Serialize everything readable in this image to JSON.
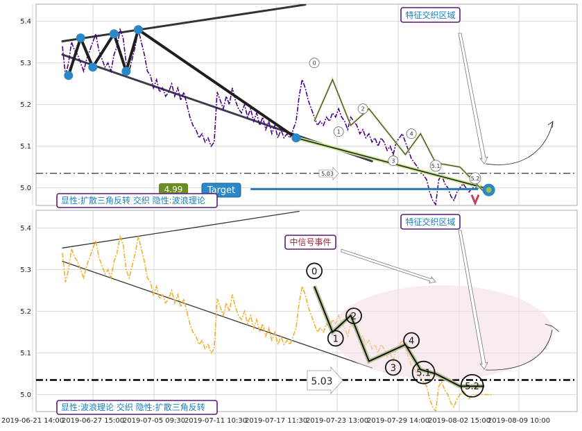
{
  "chart_data": [
    {
      "type": "line",
      "panel": "top",
      "ylim": [
        4.96,
        5.44
      ],
      "yticks": [
        5.0,
        5.1,
        5.2,
        5.3,
        5.4
      ],
      "grid": true,
      "series": [
        {
          "style": "dash-dot",
          "color": "#4b0082",
          "x": [
            0,
            1,
            2,
            3,
            4,
            5,
            6,
            7,
            8,
            9,
            10,
            11,
            12,
            13,
            14,
            15,
            16,
            17,
            18,
            19,
            20,
            21,
            22,
            23,
            24,
            25,
            26,
            27,
            28,
            29,
            30,
            31,
            32,
            33,
            34,
            35,
            36,
            37,
            38,
            39,
            40,
            41,
            42,
            43,
            44,
            45,
            46,
            47,
            48,
            49,
            50,
            51,
            52,
            53,
            54,
            55,
            56,
            57,
            58,
            59,
            60,
            61,
            62,
            63,
            64,
            65,
            66,
            67,
            68,
            69,
            70,
            71,
            72,
            73,
            74,
            75,
            76,
            77,
            78,
            79,
            80,
            81,
            82,
            83,
            84,
            85,
            86,
            87,
            88,
            89,
            90,
            91,
            92,
            93,
            94,
            95,
            96,
            97,
            98,
            99,
            100,
            101,
            102,
            103,
            104,
            105,
            106,
            107,
            108,
            109,
            110,
            111,
            112,
            113,
            114,
            115,
            116,
            117,
            118,
            119,
            120,
            121,
            122,
            123,
            124,
            125,
            126,
            127,
            128,
            129,
            130,
            131,
            132,
            133,
            134,
            135,
            136,
            137,
            138,
            139,
            140,
            141,
            142
          ],
          "values": [
            5.34,
            5.27,
            5.3,
            5.35,
            5.33,
            5.32,
            5.3,
            5.28,
            5.31,
            5.33,
            5.35,
            5.37,
            5.33,
            5.31,
            5.29,
            5.3,
            5.28,
            5.32,
            5.34,
            5.38,
            5.36,
            5.3,
            5.28,
            5.31,
            5.34,
            5.38,
            5.35,
            5.32,
            5.28,
            5.27,
            5.24,
            5.26,
            5.23,
            5.24,
            5.22,
            5.23,
            5.25,
            5.22,
            5.24,
            5.21,
            5.23,
            5.2,
            5.17,
            5.15,
            5.14,
            5.12,
            5.13,
            5.11,
            5.12,
            5.1,
            5.11,
            5.23,
            5.21,
            5.19,
            5.22,
            5.2,
            5.24,
            5.21,
            5.19,
            5.18,
            5.2,
            5.17,
            5.19,
            5.16,
            5.18,
            5.15,
            5.17,
            5.14,
            5.16,
            5.13,
            5.15,
            5.12,
            5.14,
            5.12,
            5.13,
            5.12,
            5.14,
            5.16,
            5.22,
            5.26,
            5.24,
            5.21,
            5.19,
            5.17,
            5.15,
            5.16,
            5.15,
            5.17,
            5.16,
            5.18,
            5.17,
            5.19,
            5.17,
            5.16,
            5.14,
            5.17,
            5.16,
            5.15,
            5.13,
            5.14,
            5.12,
            5.13,
            5.11,
            5.12,
            5.1,
            5.12,
            5.11,
            5.09,
            5.1,
            5.08,
            5.11,
            5.12,
            5.13,
            5.11,
            5.09,
            5.07,
            5.06,
            5.05,
            5.04,
            5.03,
            5.02,
            4.99,
            4.97,
            4.96,
            5.02,
            5.03,
            5.01,
            5.0,
            4.98,
            4.97,
            4.99,
            5.0,
            5.01,
            5.0,
            4.99,
            5.0,
            5.0,
            5.0,
            5.0,
            5.0,
            5.0,
            5.0,
            5.0
          ]
        }
      ],
      "lines": [
        {
          "x": [
            0,
            80
          ],
          "y": [
            5.352,
            5.44
          ],
          "color": "#333",
          "width": 3
        },
        {
          "x": [
            0,
            102
          ],
          "y": [
            5.32,
            5.064
          ],
          "color": "#3c3c50",
          "width": 3
        }
      ],
      "pattern_line": {
        "x": [
          2,
          6,
          10,
          17,
          21,
          25,
          77
        ],
        "y": [
          5.27,
          5.36,
          5.29,
          5.37,
          5.28,
          5.38,
          5.12
        ]
      },
      "pattern_points": {
        "x": [
          2,
          6,
          10,
          17,
          21,
          25,
          77
        ],
        "y": [
          5.27,
          5.36,
          5.29,
          5.37,
          5.28,
          5.38,
          5.12
        ]
      },
      "green_line": {
        "x": [
          77,
          139
        ],
        "y": [
          5.12,
          5.0
        ]
      },
      "wave_path": {
        "x": [
          83,
          89,
          95,
          101,
          113,
          118,
          123,
          131,
          139
        ],
        "y": [
          5.16,
          5.26,
          5.15,
          5.19,
          5.08,
          5.13,
          5.06,
          5.05,
          4.99
        ]
      },
      "wave_labels": [
        {
          "label": "0",
          "x": 83,
          "y": 5.3
        },
        {
          "label": "1",
          "x": 91,
          "y": 5.135
        },
        {
          "label": "2",
          "x": 99,
          "y": 5.19
        },
        {
          "label": "3",
          "x": 109,
          "y": 5.065
        },
        {
          "label": "4",
          "x": 115,
          "y": 5.13
        },
        {
          "label": "5.1",
          "x": 123,
          "y": 5.053
        },
        {
          "label": "5.2",
          "x": 136,
          "y": 5.023
        }
      ],
      "hline": 5.035,
      "hline_label": "5.03",
      "target": {
        "label": "Target",
        "value": "4.99",
        "x_start": 62,
        "x_end": 137,
        "y": 4.997
      },
      "annotation_box": "特征交织区域",
      "legend": "显性:扩散三角反转 交织 隐性:波浪理论"
    },
    {
      "type": "line",
      "panel": "bottom",
      "ylim": [
        4.96,
        5.44
      ],
      "yticks": [
        5.0,
        5.1,
        5.2,
        5.3,
        5.4
      ],
      "grid": true,
      "xticks": [
        "2019-06-21 14:00",
        "2019-06-27 15:00",
        "2019-07-05 09:30",
        "2019-07-11 10:30",
        "2019-07-17 11:30",
        "2019-07-23 13:00",
        "2019-07-29 14:00",
        "2019-08-02 15:00",
        "2019-08-09 10:00"
      ],
      "series": [
        {
          "style": "dash-dot",
          "color": "#f0b030",
          "x": [
            0,
            1,
            2,
            3,
            4,
            5,
            6,
            7,
            8,
            9,
            10,
            11,
            12,
            13,
            14,
            15,
            16,
            17,
            18,
            19,
            20,
            21,
            22,
            23,
            24,
            25,
            26,
            27,
            28,
            29,
            30,
            31,
            32,
            33,
            34,
            35,
            36,
            37,
            38,
            39,
            40,
            41,
            42,
            43,
            44,
            45,
            46,
            47,
            48,
            49,
            50,
            51,
            52,
            53,
            54,
            55,
            56,
            57,
            58,
            59,
            60,
            61,
            62,
            63,
            64,
            65,
            66,
            67,
            68,
            69,
            70,
            71,
            72,
            73,
            74,
            75,
            76,
            77,
            78,
            79,
            80,
            81,
            82,
            83,
            84,
            85,
            86,
            87,
            88,
            89,
            90,
            91,
            92,
            93,
            94,
            95,
            96,
            97,
            98,
            99,
            100,
            101,
            102,
            103,
            104,
            105,
            106,
            107,
            108,
            109,
            110,
            111,
            112,
            113,
            114,
            115,
            116,
            117,
            118,
            119,
            120,
            121,
            122,
            123,
            124,
            125,
            126,
            127,
            128,
            129,
            130,
            131,
            132,
            133,
            134,
            135,
            136,
            137,
            138,
            139,
            140,
            141,
            142
          ],
          "values": [
            5.34,
            5.27,
            5.3,
            5.35,
            5.33,
            5.32,
            5.3,
            5.28,
            5.31,
            5.33,
            5.35,
            5.37,
            5.33,
            5.31,
            5.29,
            5.3,
            5.28,
            5.32,
            5.34,
            5.38,
            5.36,
            5.3,
            5.28,
            5.31,
            5.34,
            5.38,
            5.35,
            5.32,
            5.28,
            5.27,
            5.24,
            5.26,
            5.23,
            5.24,
            5.22,
            5.23,
            5.25,
            5.22,
            5.24,
            5.21,
            5.23,
            5.2,
            5.17,
            5.15,
            5.14,
            5.12,
            5.13,
            5.11,
            5.12,
            5.1,
            5.11,
            5.23,
            5.21,
            5.19,
            5.22,
            5.2,
            5.24,
            5.21,
            5.19,
            5.18,
            5.2,
            5.17,
            5.19,
            5.16,
            5.18,
            5.15,
            5.17,
            5.14,
            5.16,
            5.13,
            5.15,
            5.12,
            5.14,
            5.12,
            5.13,
            5.12,
            5.14,
            5.16,
            5.22,
            5.26,
            5.24,
            5.21,
            5.19,
            5.17,
            5.15,
            5.16,
            5.15,
            5.17,
            5.16,
            5.18,
            5.17,
            5.19,
            5.17,
            5.16,
            5.14,
            5.17,
            5.16,
            5.15,
            5.13,
            5.14,
            5.12,
            5.13,
            5.11,
            5.12,
            5.1,
            5.12,
            5.11,
            5.09,
            5.1,
            5.08,
            5.11,
            5.12,
            5.13,
            5.11,
            5.09,
            5.07,
            5.06,
            5.05,
            5.04,
            5.03,
            5.02,
            4.99,
            4.97,
            4.96,
            5.02,
            5.03,
            5.01,
            5.0,
            4.98,
            4.97,
            4.99,
            5.0,
            5.01,
            5.0,
            4.99,
            5.0,
            5.0,
            5.0,
            5.0,
            5.0,
            5.0,
            5.0,
            5.0
          ]
        }
      ],
      "lines": [
        {
          "x": [
            0,
            78
          ],
          "y": [
            5.352,
            5.44
          ],
          "color": "#333",
          "width": 1.3
        },
        {
          "x": [
            0,
            102
          ],
          "y": [
            5.32,
            5.064
          ],
          "color": "#333",
          "width": 1.3
        }
      ],
      "wave_path": {
        "x": [
          83,
          89,
          95,
          101,
          113,
          118,
          123,
          131,
          139
        ],
        "y": [
          5.26,
          5.15,
          5.19,
          5.08,
          5.12,
          5.06,
          5.05,
          5.02,
          5.02
        ]
      },
      "wave_labels": [
        {
          "label": "0",
          "x": 83,
          "y": 5.297
        },
        {
          "label": "1",
          "x": 90,
          "y": 5.135
        },
        {
          "label": "2",
          "x": 96,
          "y": 5.189
        },
        {
          "label": "3",
          "x": 109,
          "y": 5.065
        },
        {
          "label": "4",
          "x": 115,
          "y": 5.13
        },
        {
          "label": "5.1",
          "x": 119,
          "y": 5.053
        },
        {
          "label": "5.2",
          "x": 135,
          "y": 5.021
        }
      ],
      "hline": 5.035,
      "hline_label": "5.03",
      "annotation_box": "特征交织区域",
      "signal_box": "中信号事件",
      "legend": "显性:波浪理论 交织 隐性:扩散三角反转"
    }
  ]
}
